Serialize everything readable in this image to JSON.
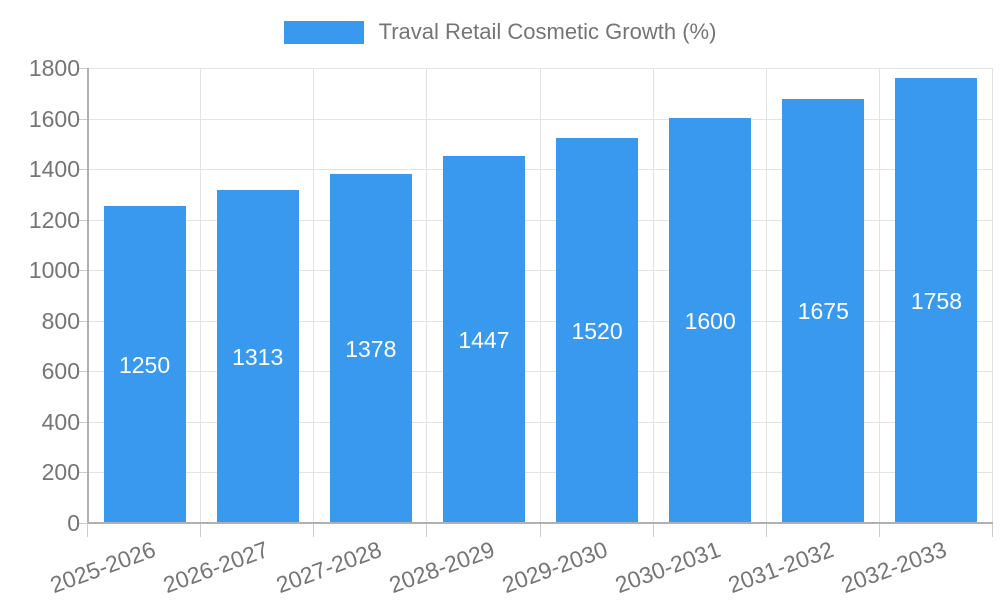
{
  "legend": {
    "label": "Traval Retail Cosmetic Growth (%)"
  },
  "chart_data": {
    "type": "bar",
    "title": "Traval Retail Cosmetic Growth (%)",
    "categories": [
      "2025-2026",
      "2026-2027",
      "2027-2028",
      "2028-2029",
      "2029-2030",
      "2030-2031",
      "2031-2032",
      "2032-2033"
    ],
    "values": [
      1250,
      1313,
      1378,
      1447,
      1520,
      1600,
      1675,
      1758
    ],
    "xlabel": "",
    "ylabel": "",
    "ylim": [
      0,
      1800
    ],
    "yticks": [
      0,
      200,
      400,
      600,
      800,
      1000,
      1200,
      1400,
      1600,
      1800
    ],
    "grid": true,
    "legend_position": "top-center",
    "bar_color": "#3999EE",
    "value_label_color": "#FFFFFF",
    "axis_text_color": "#757575",
    "gridline_color": "#E3E3E3",
    "axis_line_color": "#B0B0B0"
  }
}
